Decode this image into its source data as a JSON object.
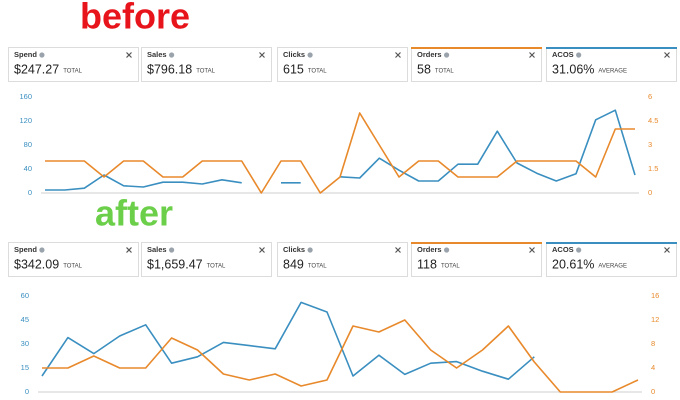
{
  "panels": [
    {
      "heading": "before",
      "heading_color": "#e8141b",
      "cards": [
        {
          "label": "Spend",
          "value": "$247.27",
          "unit": "TOTAL"
        },
        {
          "label": "Sales",
          "value": "$796.18",
          "unit": "TOTAL"
        },
        {
          "label": "Clicks",
          "value": "615",
          "unit": "TOTAL"
        },
        {
          "label": "Orders",
          "value": "58",
          "unit": "TOTAL",
          "accent": "#e8892b"
        },
        {
          "label": "ACOS",
          "value": "31.06%",
          "unit": "AVERAGE",
          "accent": "#3a8fc0"
        }
      ]
    },
    {
      "heading": "after",
      "heading_color": "#6ccf4a",
      "cards": [
        {
          "label": "Spend",
          "value": "$342.09",
          "unit": "TOTAL"
        },
        {
          "label": "Sales",
          "value": "$1,659.47",
          "unit": "TOTAL"
        },
        {
          "label": "Clicks",
          "value": "849",
          "unit": "TOTAL"
        },
        {
          "label": "Orders",
          "value": "118",
          "unit": "TOTAL",
          "accent": "#e8892b"
        },
        {
          "label": "ACOS",
          "value": "20.61%",
          "unit": "AVERAGE",
          "accent": "#3a8fc0"
        }
      ]
    }
  ],
  "chart_data": [
    {
      "type": "line",
      "ylim": [
        0,
        160
      ],
      "yticks": [
        0,
        40,
        80,
        120,
        160
      ],
      "y2lim": [
        0,
        6
      ],
      "y2ticks": [
        0,
        1.5,
        3,
        4.5,
        6
      ],
      "series": [
        {
          "color": "#3a8fc0",
          "values": [
            5,
            5,
            8,
            30,
            12,
            10,
            18,
            18,
            15,
            22,
            17,
            null,
            17,
            17,
            null,
            27,
            25,
            58,
            38,
            20,
            20,
            48,
            48,
            103,
            50,
            33,
            20,
            32,
            122,
            138,
            30
          ]
        },
        {
          "color": "#e8892b",
          "axis": "y2",
          "values": [
            2,
            2,
            2,
            1,
            2,
            2,
            1,
            1,
            2,
            2,
            2,
            0,
            2,
            2,
            0,
            1,
            5,
            3,
            1,
            2,
            2,
            1,
            1,
            1,
            2,
            2,
            2,
            2,
            1,
            4,
            4
          ]
        }
      ]
    },
    {
      "type": "line",
      "ylim": [
        0,
        60
      ],
      "yticks": [
        0,
        15,
        30,
        45,
        60
      ],
      "y2lim": [
        0,
        16
      ],
      "y2ticks": [
        0,
        4,
        8,
        12,
        16
      ],
      "series": [
        {
          "color": "#3a8fc0",
          "values": [
            10,
            34,
            24,
            35,
            42,
            18,
            22,
            31,
            29,
            27,
            56,
            50,
            10,
            23,
            11,
            18,
            19,
            13,
            8,
            22,
            null,
            null,
            null,
            null
          ]
        },
        {
          "color": "#e8892b",
          "axis": "y2",
          "values": [
            4,
            4,
            6,
            4,
            4,
            9,
            7,
            3,
            2,
            3,
            1,
            2,
            11,
            10,
            12,
            7,
            4,
            7,
            11,
            5,
            0,
            0,
            0,
            2
          ]
        }
      ]
    }
  ]
}
